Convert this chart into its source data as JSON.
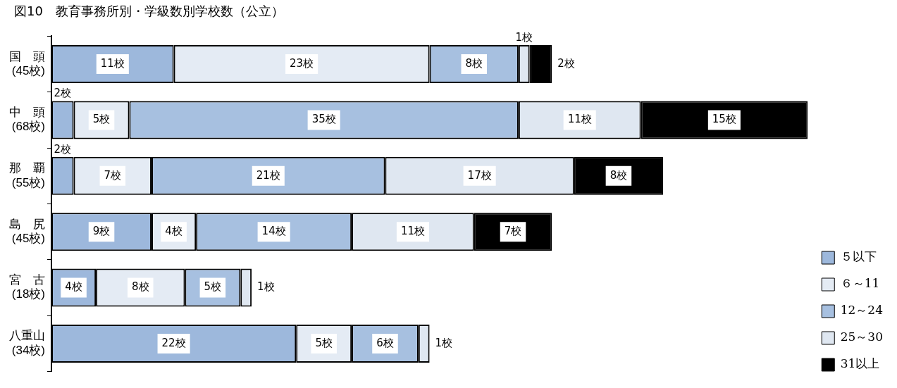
{
  "chart_data": {
    "type": "bar",
    "orientation": "horizontal",
    "stacked": true,
    "title": "図10　教育事務所別・学級数別学校数（公立）",
    "categories": [
      "国　頭\n(45校)",
      "中　頭\n(68校)",
      "那　覇\n(55校)",
      "島　尻\n(45校)",
      "宮　古\n(18校)",
      "八重山\n(34校)"
    ],
    "xlim": [
      0,
      68
    ],
    "tick_labels": "y",
    "grid": false,
    "legend": "right",
    "series": [
      {
        "name": "５以下",
        "color": "#9db8dc",
        "values": [
          11,
          2,
          2,
          9,
          4,
          22
        ],
        "value_labels": [
          "11校",
          "2校",
          "2校",
          "9校",
          "4校",
          "22校"
        ]
      },
      {
        "name": "６～11",
        "color": "#e4ebf4",
        "values": [
          23,
          5,
          7,
          4,
          8,
          5
        ],
        "value_labels": [
          "23校",
          "5校",
          "7校",
          "4校",
          "8校",
          "5校"
        ]
      },
      {
        "name": "12～24",
        "color": "#a7c0e0",
        "values": [
          8,
          35,
          21,
          14,
          5,
          6
        ],
        "value_labels": [
          "8校",
          "35校",
          "21校",
          "14校",
          "5校",
          "6校"
        ]
      },
      {
        "name": "25～30",
        "color": "#dfe7f1",
        "values": [
          1,
          11,
          17,
          11,
          1,
          1
        ],
        "value_labels": [
          "1校",
          "11校",
          "17校",
          "11校",
          "1校",
          "1校"
        ]
      },
      {
        "name": "31以上",
        "color": "#000000",
        "values": [
          2,
          15,
          8,
          7,
          0,
          0
        ],
        "value_labels": [
          "2校",
          "15校",
          "8校",
          "7校",
          null,
          null
        ]
      }
    ]
  }
}
